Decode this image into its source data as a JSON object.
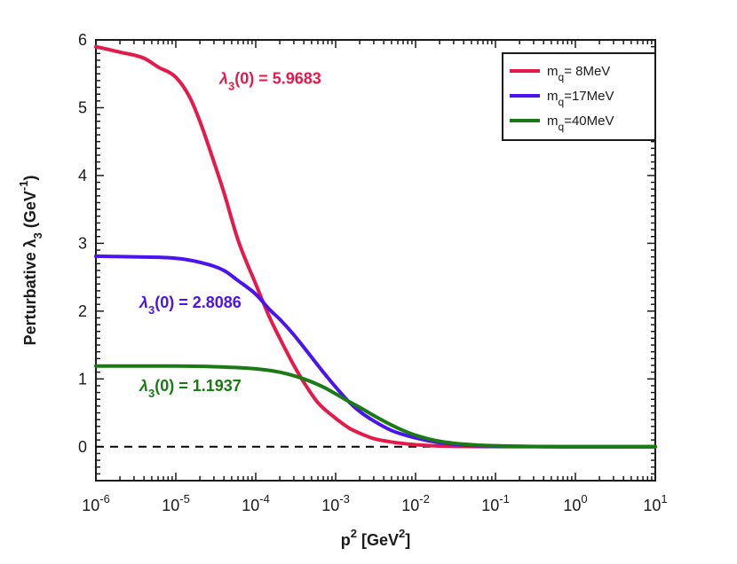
{
  "chart_data": {
    "type": "line",
    "title": "",
    "xlabel": "p",
    "xlabel_sup": "2",
    "xlabel_units_prefix": " [GeV",
    "xlabel_units_sup": "2",
    "xlabel_units_suffix": "]",
    "ylabel": "Perturbative λ",
    "ylabel_sub": "3",
    "ylabel_units_prefix": " (GeV",
    "ylabel_units_sup": "-1",
    "ylabel_units_suffix": ")",
    "xscale": "log",
    "xlim": [
      1e-06,
      10
    ],
    "ylim": [
      -0.5,
      6
    ],
    "grid": false,
    "legend_position": "top-right",
    "x_ticks": [
      {
        "base": "10",
        "exp": "-6",
        "value": 1e-06
      },
      {
        "base": "10",
        "exp": "-5",
        "value": 1e-05
      },
      {
        "base": "10",
        "exp": "-4",
        "value": 0.0001
      },
      {
        "base": "10",
        "exp": "-3",
        "value": 0.001
      },
      {
        "base": "10",
        "exp": "-2",
        "value": 0.01
      },
      {
        "base": "10",
        "exp": "-1",
        "value": 0.1
      },
      {
        "base": "10",
        "exp": "0",
        "value": 1
      },
      {
        "base": "10",
        "exp": "1",
        "value": 10
      }
    ],
    "y_ticks": [
      "0",
      "1",
      "2",
      "3",
      "4",
      "5",
      "6"
    ],
    "reference_line": {
      "y": 0,
      "style": "dashed",
      "color": "#000000"
    },
    "series": [
      {
        "name": "m_q = 8MeV",
        "legend_main": "m",
        "legend_sub": "q",
        "legend_rest": "= 8MeV",
        "color": "#e5194a",
        "x": [
          1e-06,
          2e-06,
          4e-06,
          6e-06,
          1e-05,
          1.5e-05,
          2e-05,
          3e-05,
          4e-05,
          6e-05,
          0.0001,
          0.00015,
          0.0002,
          0.0003,
          0.0004,
          0.0006,
          0.001,
          0.0015,
          0.002,
          0.003,
          0.005,
          0.01,
          0.02,
          0.05,
          0.1,
          1,
          10
        ],
        "y": [
          5.9,
          5.82,
          5.73,
          5.6,
          5.45,
          5.15,
          4.8,
          4.2,
          3.75,
          3.05,
          2.4,
          1.9,
          1.6,
          1.2,
          0.95,
          0.65,
          0.42,
          0.27,
          0.2,
          0.12,
          0.07,
          0.03,
          0.012,
          0.004,
          0.002,
          0.0,
          0.0
        ]
      },
      {
        "name": "m_q = 17MeV",
        "legend_main": "m",
        "legend_sub": "q",
        "legend_rest": "=17MeV",
        "color": "#4a14f0",
        "x": [
          1e-06,
          3e-06,
          1e-05,
          2e-05,
          4e-05,
          6e-05,
          0.0001,
          0.00015,
          0.0002,
          0.0003,
          0.0005,
          0.0007,
          0.001,
          0.0015,
          0.002,
          0.003,
          0.005,
          0.01,
          0.02,
          0.05,
          0.1,
          1,
          10
        ],
        "y": [
          2.81,
          2.8,
          2.78,
          2.72,
          2.6,
          2.45,
          2.25,
          2.02,
          1.88,
          1.65,
          1.32,
          1.1,
          0.88,
          0.65,
          0.52,
          0.38,
          0.24,
          0.13,
          0.06,
          0.02,
          0.01,
          0.0,
          0.0
        ]
      },
      {
        "name": "m_q = 40MeV",
        "legend_main": "m",
        "legend_sub": "q",
        "legend_rest": "=40MeV",
        "color": "#1a7a14",
        "x": [
          1e-06,
          1e-05,
          3e-05,
          0.0001,
          0.0002,
          0.0004,
          0.0007,
          0.001,
          0.0015,
          0.002,
          0.003,
          0.005,
          0.007,
          0.01,
          0.02,
          0.05,
          0.1,
          1,
          10
        ],
        "y": [
          1.19,
          1.19,
          1.18,
          1.15,
          1.1,
          1.0,
          0.88,
          0.78,
          0.66,
          0.58,
          0.46,
          0.32,
          0.24,
          0.17,
          0.08,
          0.03,
          0.015,
          0.0,
          0.0
        ]
      }
    ],
    "annotations": [
      {
        "prefix": "λ",
        "sub": "3",
        "text": "(0) = 5.9683",
        "color": "#e5194a",
        "x": 3.5e-05,
        "y": 5.35
      },
      {
        "prefix": "λ",
        "sub": "3",
        "text": "(0) = 2.8086",
        "color": "#4a14f0",
        "x": 3.5e-06,
        "y": 2.05
      },
      {
        "prefix": "λ",
        "sub": "3",
        "text": "(0) = 1.1937",
        "color": "#1a7a14",
        "x": 3.5e-06,
        "y": 0.82
      }
    ]
  }
}
